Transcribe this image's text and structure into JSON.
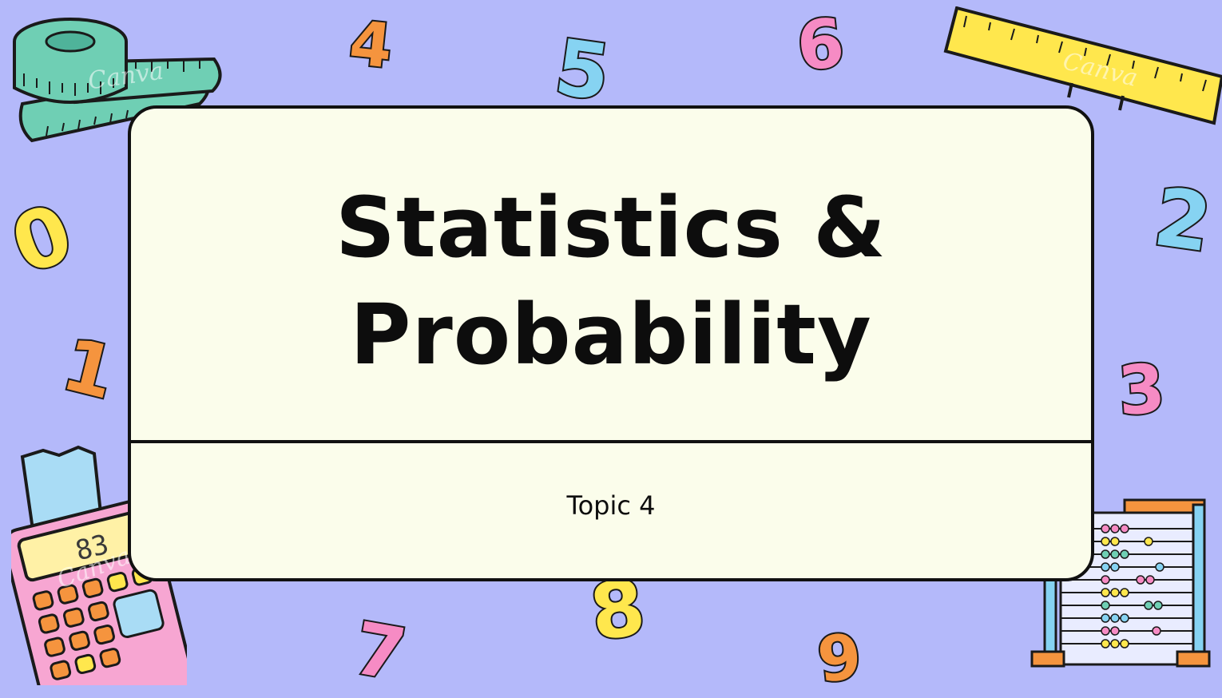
{
  "slide": {
    "title_line1": "Statistics &",
    "title_line2": "Probability",
    "subtitle": "Topic 4"
  },
  "decor": {
    "digits": [
      "4",
      "5",
      "6",
      "0",
      "2",
      "1",
      "3",
      "8",
      "7",
      "9"
    ],
    "calculator_display": "83",
    "watermark": "Canva",
    "icons": [
      "measuring-tape-icon",
      "ruler-icon",
      "calculator-icon",
      "abacus-icon"
    ]
  },
  "colors": {
    "background": "#b4b9fa",
    "card": "#fbfdeb",
    "orange": "#f5943e",
    "blue": "#86d3f2",
    "pink": "#f68bc4",
    "yellow": "#ffe74d",
    "teal": "#6fcfb4"
  }
}
